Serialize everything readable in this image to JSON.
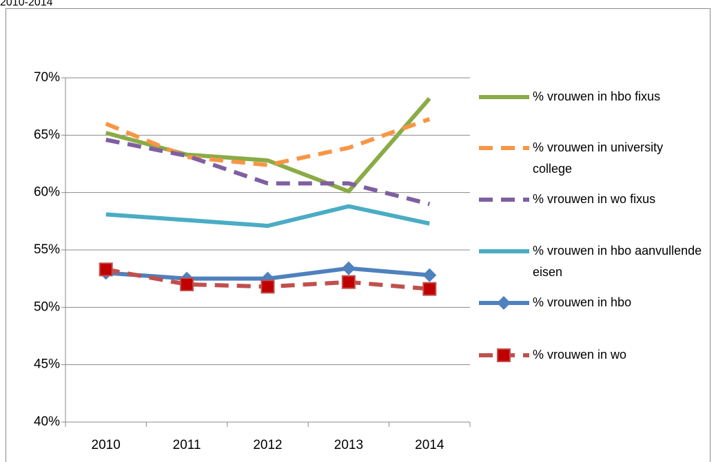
{
  "chart_data": {
    "type": "line",
    "title": "2010-2014",
    "categories": [
      "2010",
      "2011",
      "2012",
      "2013",
      "2014"
    ],
    "ylim": [
      40,
      70
    ],
    "yticks": [
      {
        "value": 40,
        "label": "40%"
      },
      {
        "value": 45,
        "label": "45%"
      },
      {
        "value": 50,
        "label": "50%"
      },
      {
        "value": 55,
        "label": "55%"
      },
      {
        "value": 60,
        "label": "60%"
      },
      {
        "value": 65,
        "label": "65%"
      },
      {
        "value": 70,
        "label": "70%"
      }
    ],
    "grid": true,
    "legend": "right",
    "series": [
      {
        "name": "% vrouwen in hbo fixus",
        "color": "#8aab46",
        "dashed": false,
        "values": [
          65.2,
          63.3,
          62.8,
          60.1,
          68.2
        ]
      },
      {
        "name": "% vrouwen in university college",
        "color": "#f79646",
        "dashed": true,
        "values": [
          66.0,
          63.1,
          62.4,
          63.9,
          66.4
        ]
      },
      {
        "name": "% vrouwen in wo fixus",
        "color": "#7f5fa0",
        "dashed": true,
        "values": [
          64.6,
          63.2,
          60.8,
          60.8,
          59.0
        ]
      },
      {
        "name": "% vrouwen in hbo aanvullende eisen",
        "color": "#4aacc5",
        "dashed": false,
        "values": [
          58.1,
          57.6,
          57.1,
          58.8,
          57.3
        ]
      },
      {
        "name": "% vrouwen in hbo",
        "color": "#4f81bd",
        "dashed": false,
        "marker": "diamond",
        "values": [
          53.0,
          52.5,
          52.5,
          53.4,
          52.8
        ]
      },
      {
        "name": "% vrouwen in wo",
        "color": "#c0504d",
        "dashed": true,
        "marker": "square",
        "marker_color": "#c00000",
        "values": [
          53.3,
          52.0,
          51.8,
          52.2,
          51.6
        ]
      }
    ]
  }
}
